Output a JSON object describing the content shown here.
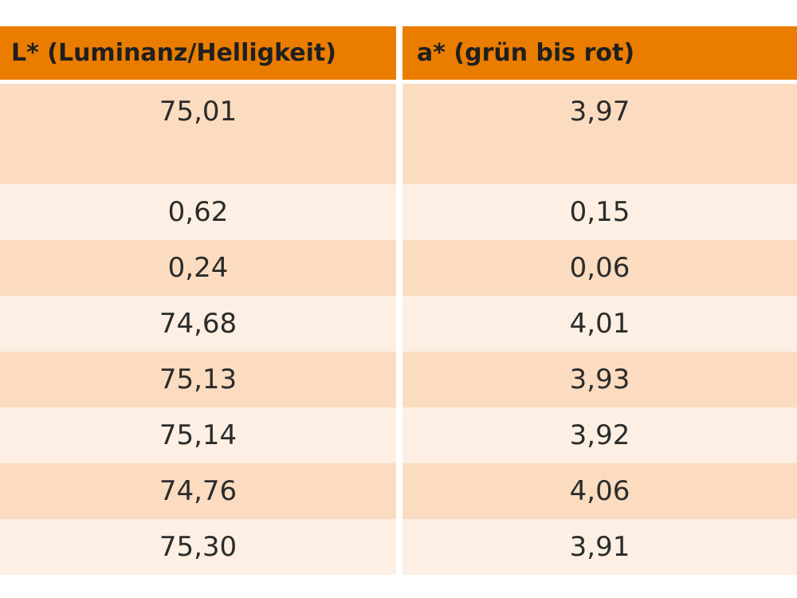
{
  "columns": [
    "L* (Luminanz/Helligkeit)",
    "a* (grün bis rot)"
  ],
  "rows": [
    [
      "75,01",
      "3,97"
    ],
    [
      "0,62",
      "0,15"
    ],
    [
      "0,24",
      "0,06"
    ],
    [
      "74,68",
      "4,01"
    ],
    [
      "75,13",
      "3,93"
    ],
    [
      "75,14",
      "3,92"
    ],
    [
      "74,76",
      "4,06"
    ],
    [
      "75,30",
      "3,91"
    ]
  ],
  "colors": {
    "header": "#ea7d00",
    "row_dark": "#fbdcc0",
    "row_light": "#fdefe3"
  }
}
